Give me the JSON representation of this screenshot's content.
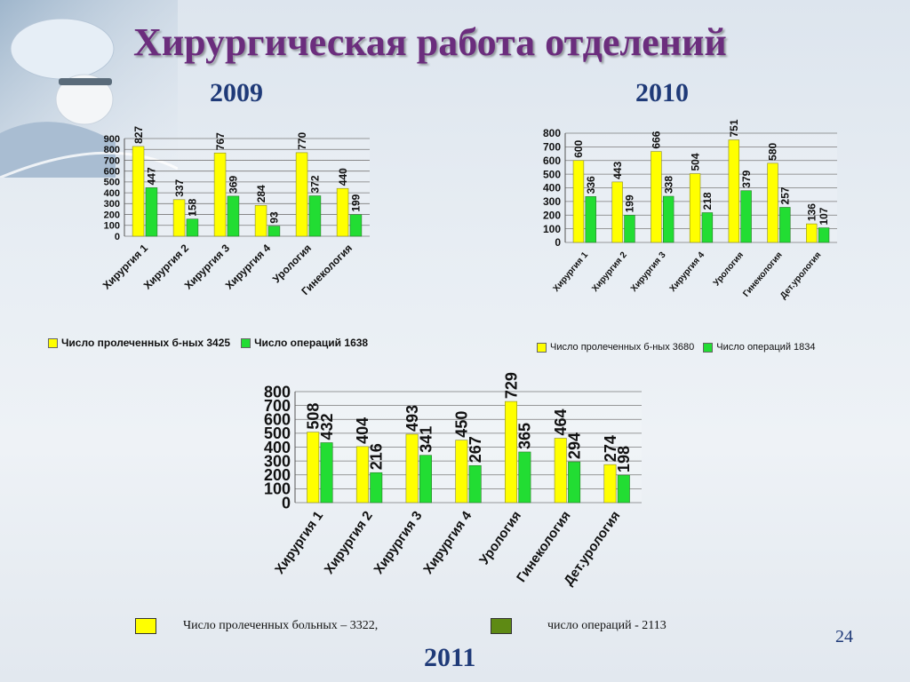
{
  "title": "Хирургическая работа отделений",
  "page_number": "24",
  "colors": {
    "patients": "#ffff00",
    "operations": "#22dd33",
    "operations_legend_2011": "#5e8a14",
    "title": "#6b2d7d",
    "year": "#1f3a78"
  },
  "charts": {
    "c2009": {
      "year": "2009",
      "legend": {
        "patients": "Число пролеченных б-ных 3425",
        "operations": "Число операций 1638"
      }
    },
    "c2010": {
      "year": "2010",
      "legend": {
        "patients": "Число пролеченных б-ных 3680",
        "operations": "Число операций  1834"
      }
    },
    "c2011": {
      "year": "2011",
      "legend": {
        "patients": "Число пролеченных больных – 3322,",
        "operations": "число операций - 2113"
      }
    }
  },
  "chart_data": [
    {
      "type": "bar",
      "title": "2009",
      "categories": [
        "Хирургия 1",
        "Хирургия 2",
        "Хирургия 3",
        "Хирургия 4",
        "Урология",
        "Гинекология"
      ],
      "series": [
        {
          "name": "Число пролеченных б-ных 3425",
          "values": [
            827,
            337,
            767,
            284,
            770,
            440
          ]
        },
        {
          "name": "Число операций 1638",
          "values": [
            447,
            158,
            369,
            93,
            372,
            199
          ]
        }
      ],
      "ylim": [
        0,
        900
      ],
      "yticks": [
        0,
        100,
        200,
        300,
        400,
        500,
        600,
        700,
        800,
        900
      ],
      "grid": true,
      "legend": "bottom"
    },
    {
      "type": "bar",
      "title": "2010",
      "categories": [
        "Хирургия 1",
        "Хирургия 2",
        "Хирургия 3",
        "Хирургия 4",
        "Урология",
        "Гинекология",
        "Дет.урология"
      ],
      "series": [
        {
          "name": "Число пролеченных б-ных 3680",
          "values": [
            600,
            443,
            666,
            504,
            751,
            580,
            136
          ]
        },
        {
          "name": "Число операций  1834",
          "values": [
            336,
            199,
            338,
            218,
            379,
            257,
            107
          ]
        }
      ],
      "ylim": [
        0,
        800
      ],
      "yticks": [
        0,
        100,
        200,
        300,
        400,
        500,
        600,
        700,
        800
      ],
      "grid": true,
      "legend": "bottom"
    },
    {
      "type": "bar",
      "title": "2011",
      "categories": [
        "Хирургия 1",
        "Хирургия 2",
        "Хирургия 3",
        "Хирургия 4",
        "Урология",
        "Гинекология",
        "Дет.урология"
      ],
      "series": [
        {
          "name": "Число пролеченных больных – 3322,",
          "values": [
            508,
            404,
            493,
            450,
            729,
            464,
            274
          ]
        },
        {
          "name": "число операций - 2113",
          "values": [
            432,
            216,
            341,
            267,
            365,
            294,
            198
          ]
        }
      ],
      "ylim": [
        0,
        800
      ],
      "yticks": [
        0,
        100,
        200,
        300,
        400,
        500,
        600,
        700,
        800
      ],
      "grid": true,
      "legend": "bottom"
    }
  ]
}
